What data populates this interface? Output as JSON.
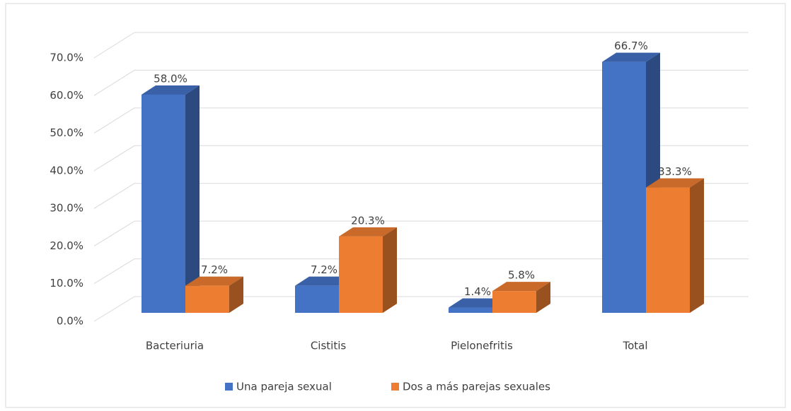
{
  "chart_data": {
    "type": "bar3d",
    "categories": [
      "Bacteriuria",
      "Cistitis",
      "Pielonefritis",
      "Total"
    ],
    "series": [
      {
        "name": "Una pareja sexual",
        "color": "#4472c4",
        "values": [
          58.0,
          7.2,
          1.4,
          66.7
        ],
        "value_labels": [
          "58.0%",
          "7.2%",
          "1.4%",
          "66.7%"
        ]
      },
      {
        "name": "Dos a más parejas sexuales",
        "color": "#ed7d31",
        "values": [
          7.2,
          20.3,
          5.8,
          33.3
        ],
        "value_labels": [
          "7.2%",
          "20.3%",
          "5.8%",
          "33.3%"
        ]
      }
    ],
    "ylim": [
      0,
      70
    ],
    "yticks": [
      {
        "value": 0,
        "label": "0.0%"
      },
      {
        "value": 10,
        "label": "10.0%"
      },
      {
        "value": 20,
        "label": "20.0%"
      },
      {
        "value": 30,
        "label": "30.0%"
      },
      {
        "value": 40,
        "label": "40.0%"
      },
      {
        "value": 50,
        "label": "50.0%"
      },
      {
        "value": 60,
        "label": "60.0%"
      },
      {
        "value": 70,
        "label": "70.0%"
      }
    ],
    "grid": true,
    "legend": "bottom"
  }
}
